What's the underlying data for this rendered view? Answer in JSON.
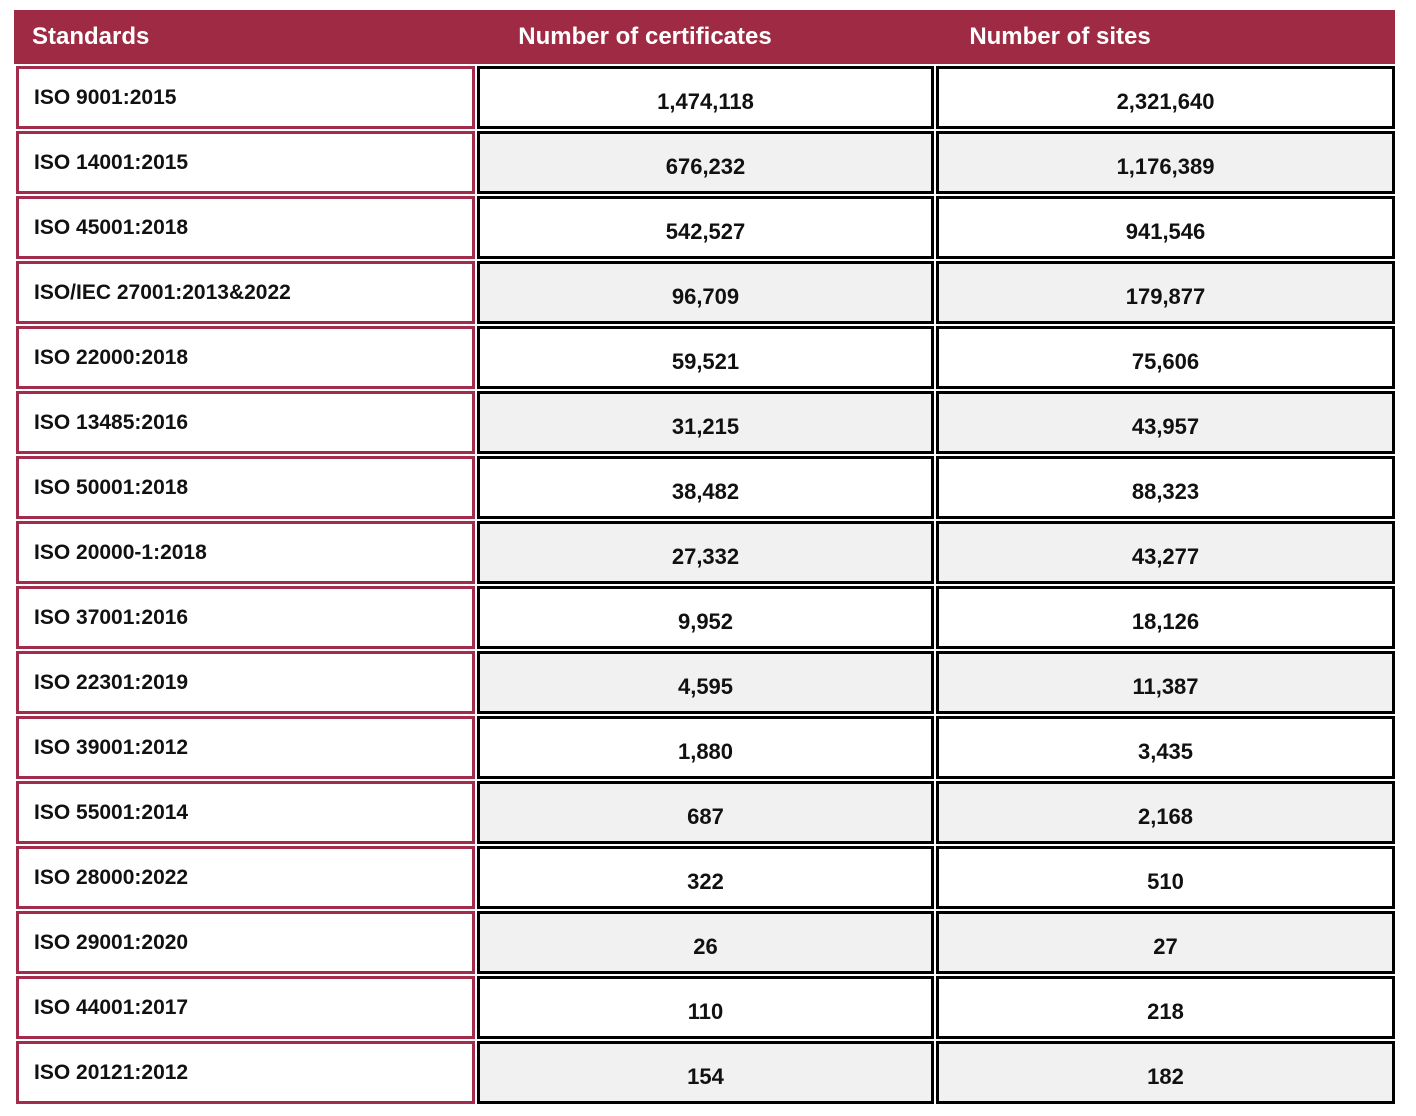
{
  "colors": {
    "header_bg": "#9E2B43",
    "header_text": "#FFFFFF",
    "row_border": "#A32C4D",
    "value_border": "#000000",
    "stripe_bg": "#F1F1F1",
    "cell_text": "#111111"
  },
  "table": {
    "columns": [
      "Standards",
      "Number of certificates",
      "Number of sites"
    ],
    "rows": [
      {
        "standard": "ISO 9001:2015",
        "certificates": "1,474,118",
        "sites": "2,321,640"
      },
      {
        "standard": "ISO 14001:2015",
        "certificates": "676,232",
        "sites": "1,176,389"
      },
      {
        "standard": "ISO 45001:2018",
        "certificates": "542,527",
        "sites": "941,546"
      },
      {
        "standard": "ISO/IEC 27001:2013&2022",
        "certificates": "96,709",
        "sites": "179,877"
      },
      {
        "standard": "ISO 22000:2018",
        "certificates": "59,521",
        "sites": "75,606"
      },
      {
        "standard": "ISO 13485:2016",
        "certificates": "31,215",
        "sites": "43,957"
      },
      {
        "standard": "ISO 50001:2018",
        "certificates": "38,482",
        "sites": "88,323"
      },
      {
        "standard": "ISO 20000-1:2018",
        "certificates": "27,332",
        "sites": "43,277"
      },
      {
        "standard": "ISO 37001:2016",
        "certificates": "9,952",
        "sites": "18,126"
      },
      {
        "standard": "ISO 22301:2019",
        "certificates": "4,595",
        "sites": "11,387"
      },
      {
        "standard": "ISO 39001:2012",
        "certificates": "1,880",
        "sites": "3,435"
      },
      {
        "standard": "ISO 55001:2014",
        "certificates": "687",
        "sites": "2,168"
      },
      {
        "standard": "ISO 28000:2022",
        "certificates": "322",
        "sites": "510"
      },
      {
        "standard": "ISO 29001:2020",
        "certificates": "26",
        "sites": "27"
      },
      {
        "standard": "ISO 44001:2017",
        "certificates": "110",
        "sites": "218"
      },
      {
        "standard": "ISO 20121:2012",
        "certificates": "154",
        "sites": "182"
      }
    ]
  }
}
